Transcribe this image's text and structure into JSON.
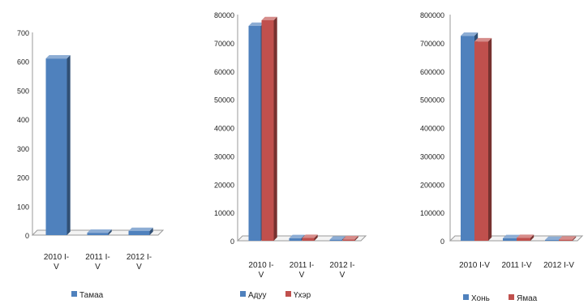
{
  "chart_data": [
    {
      "type": "bar",
      "categories": [
        "2010 I-V",
        "2011 I-V",
        "2012 I-V"
      ],
      "category_labels": [
        [
          "2010 I-",
          "V"
        ],
        [
          "2011 I-",
          "V"
        ],
        [
          "2012 I-",
          "V"
        ]
      ],
      "series": [
        {
          "name": "Тамаа",
          "values": [
            610,
            8,
            14
          ],
          "color": "#4f81bd"
        }
      ],
      "ylim": [
        0,
        700
      ],
      "yticks": [
        0,
        100,
        200,
        300,
        400,
        500,
        600,
        700
      ],
      "ytick_labels": [
        "0",
        "100",
        "200",
        "300",
        "400",
        "500",
        "600",
        "700"
      ],
      "legend": "bottom",
      "grid": false
    },
    {
      "type": "bar",
      "categories": [
        "2010 I-V",
        "2011 I-V",
        "2012 I-V"
      ],
      "category_labels": [
        [
          "2010 I-",
          "V"
        ],
        [
          "2011 I-",
          "V"
        ],
        [
          "2012 I-",
          "V"
        ]
      ],
      "series": [
        {
          "name": "Адуу",
          "values": [
            76000,
            900,
            400
          ],
          "color": "#4f81bd"
        },
        {
          "name": "Үхэр",
          "values": [
            78000,
            1000,
            500
          ],
          "color": "#c0504d"
        }
      ],
      "ylim": [
        0,
        80000
      ],
      "yticks": [
        0,
        10000,
        20000,
        30000,
        40000,
        50000,
        60000,
        70000,
        80000
      ],
      "ytick_labels": [
        "0",
        "10000",
        "20000",
        "30000",
        "40000",
        "50000",
        "60000",
        "70000",
        "80000"
      ],
      "legend": "bottom",
      "grid": false
    },
    {
      "type": "bar",
      "categories": [
        "2010 I-V",
        "2011 I-V",
        "2012 I-V"
      ],
      "category_labels": [
        [
          "2010 I-V"
        ],
        [
          "2011 I-V"
        ],
        [
          "2012 I-V"
        ]
      ],
      "series": [
        {
          "name": "Хонь",
          "values": [
            725000,
            9000,
            3000
          ],
          "color": "#4f81bd"
        },
        {
          "name": "Ямаа",
          "values": [
            705000,
            10000,
            4000
          ],
          "color": "#c0504d"
        }
      ],
      "ylim": [
        0,
        800000
      ],
      "yticks": [
        0,
        100000,
        200000,
        300000,
        400000,
        500000,
        600000,
        700000,
        800000
      ],
      "ytick_labels": [
        "0",
        "100000",
        "200000",
        "300000",
        "400000",
        "500000",
        "600000",
        "700000",
        "800000"
      ],
      "legend": "bottom",
      "grid": false
    }
  ]
}
